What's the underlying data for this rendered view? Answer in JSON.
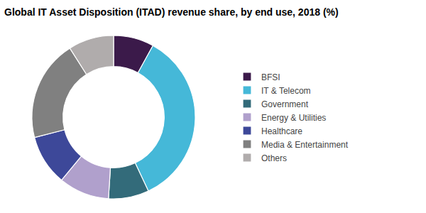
{
  "chart_data": {
    "type": "donut",
    "title": "Global IT Asset Disposition (ITAD) revenue share, by end use, 2018 (%)",
    "categories": [
      "BFSI",
      "IT & Telecom",
      "Government",
      "Energy & Utilities",
      "Healthcare",
      "Media & Entertainment",
      "Others"
    ],
    "values": [
      8,
      35,
      8,
      10,
      10,
      20,
      9
    ],
    "colors": [
      "#3b1a4a",
      "#45b8d8",
      "#336b7a",
      "#b0a0cc",
      "#3d4899",
      "#808080",
      "#b0acac"
    ],
    "legend": "right"
  }
}
